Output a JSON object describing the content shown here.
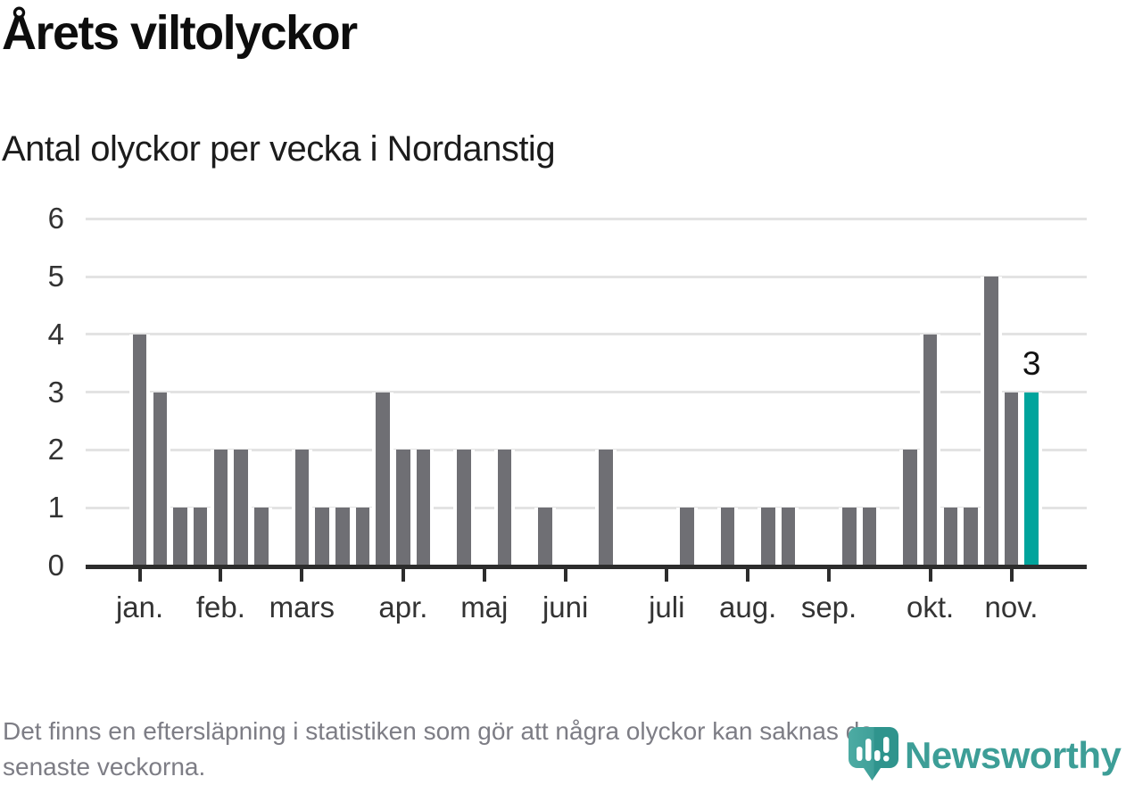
{
  "title": "Årets viltolyckor",
  "subtitle": "Antal olyckor per vecka i Nordanstig",
  "note_line1": "Det finns en eftersläpning i statistiken som gör att några olyckor kan saknas de",
  "note_line2": "senaste veckorna.",
  "logo": {
    "text": "Newsworthy",
    "color": "#3d9e97"
  },
  "chart_data": {
    "type": "bar",
    "title": "Årets viltolyckor",
    "subtitle": "Antal olyckor per vecka i Nordanstig",
    "x_unit": "week",
    "values": [
      4,
      3,
      1,
      1,
      2,
      2,
      1,
      0,
      2,
      1,
      1,
      1,
      3,
      2,
      2,
      0,
      2,
      0,
      2,
      0,
      1,
      0,
      0,
      2,
      0,
      0,
      0,
      1,
      0,
      1,
      0,
      1,
      1,
      0,
      0,
      1,
      1,
      0,
      2,
      4,
      1,
      1,
      5,
      3,
      3
    ],
    "highlight_index": 44,
    "highlight_label": "3",
    "months": [
      {
        "label": "jan.",
        "week": 1
      },
      {
        "label": "feb.",
        "week": 5
      },
      {
        "label": "mars",
        "week": 9
      },
      {
        "label": "apr.",
        "week": 14
      },
      {
        "label": "maj",
        "week": 18
      },
      {
        "label": "juni",
        "week": 22
      },
      {
        "label": "juli",
        "week": 27
      },
      {
        "label": "aug.",
        "week": 31
      },
      {
        "label": "sep.",
        "week": 35
      },
      {
        "label": "okt.",
        "week": 40
      },
      {
        "label": "nov.",
        "week": 44
      }
    ],
    "yticks": [
      0,
      1,
      2,
      3,
      4,
      5,
      6
    ],
    "ylim": [
      0,
      6
    ],
    "grid": "horizontal",
    "legend": "none",
    "colors": {
      "bar": "#6f6f74",
      "highlight": "#00a49c",
      "grid": "#e3e3e3",
      "axis": "#2d2d2d"
    }
  }
}
